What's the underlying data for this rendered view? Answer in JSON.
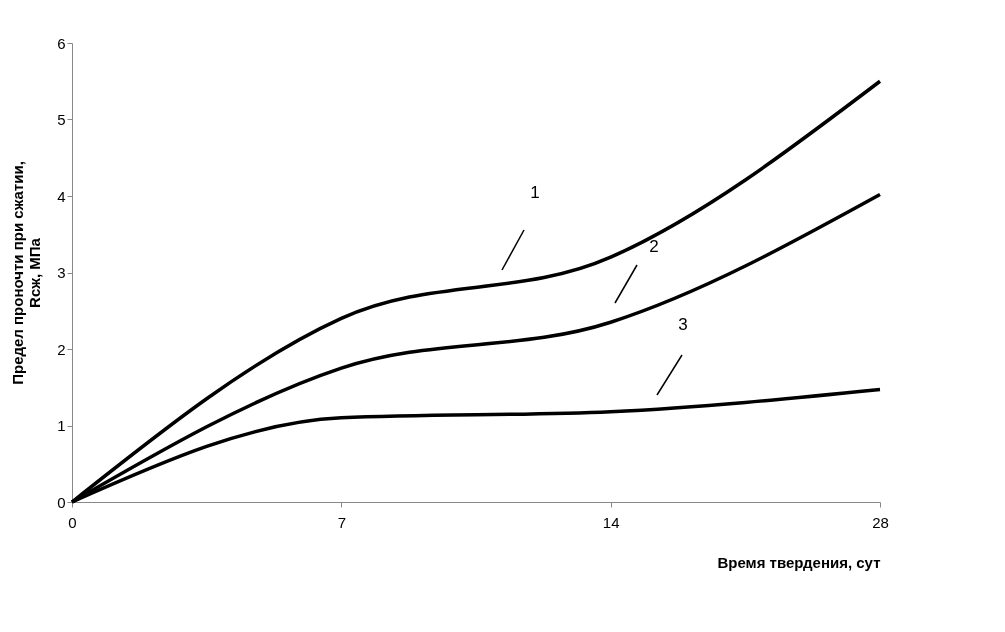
{
  "chart_data": {
    "type": "line",
    "xlabel": "Время твердения, сут",
    "ylabel": "Предел проночти при сжатии, Rсж, МПа",
    "categories": [
      "0",
      "7",
      "14",
      "28"
    ],
    "series": [
      {
        "color": "#000000",
        "values": [
          0,
          2.4,
          3.2,
          5.5
        ]
      },
      {
        "color": "#000000",
        "values": [
          0,
          1.75,
          2.35,
          4.02
        ]
      },
      {
        "color": "#000000",
        "values": [
          0,
          1.1,
          1.18,
          1.47
        ]
      }
    ],
    "ylim": [
      0,
      6
    ],
    "yticks": [
      0,
      1,
      2,
      3,
      4,
      5,
      6
    ],
    "grid": false,
    "legend": false,
    "marker": "none",
    "line_style": "solid",
    "annotations": [
      "1",
      "2",
      "3"
    ]
  }
}
